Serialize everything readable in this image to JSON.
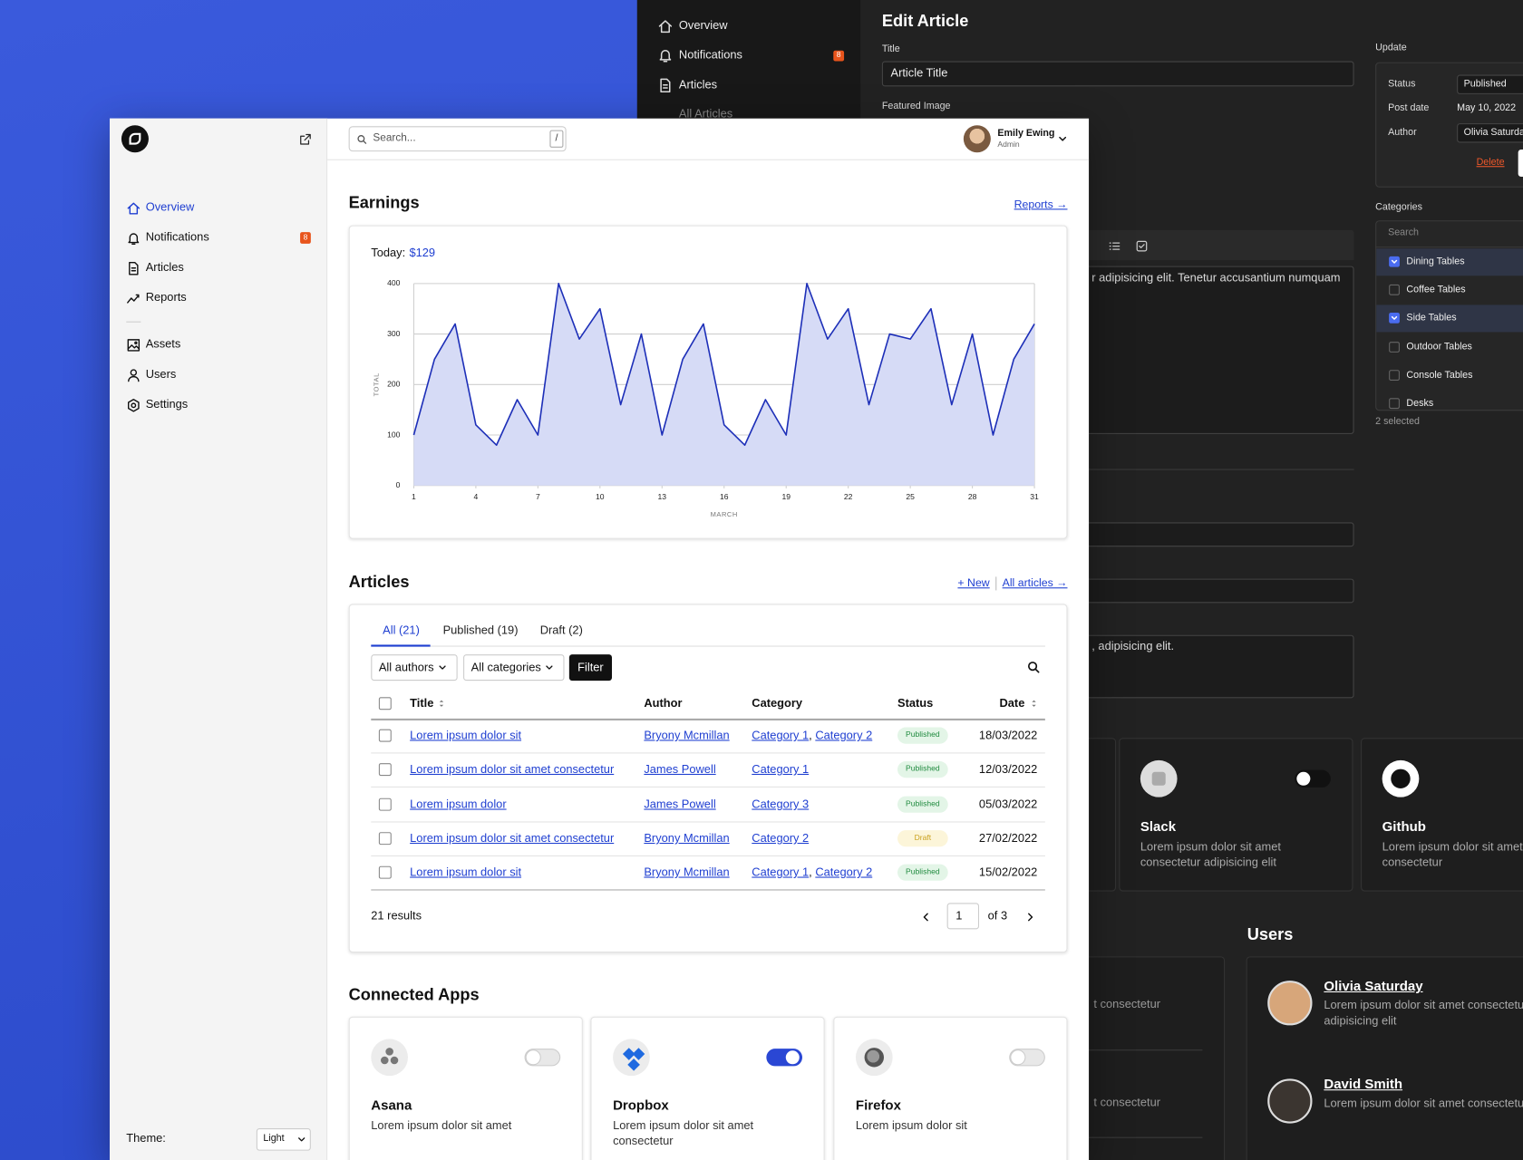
{
  "back_window": {
    "nav": [
      "Overview",
      "Notifications",
      "Articles",
      "All Articles"
    ],
    "notifications_badge": "8",
    "title": "Edit Article",
    "title_label": "Title",
    "title_value": "Article Title",
    "featured_image_label": "Featured Image",
    "editor_text_1": "r adipisicing elit. Tenetur accusantium numquam",
    "editor_text_2": ", adipisicing elit.",
    "update": {
      "heading": "Update",
      "rows": [
        [
          "Status",
          "Published"
        ],
        [
          "Post date",
          "May 10, 2022"
        ],
        [
          "Author",
          "Olivia Saturday"
        ]
      ],
      "delete": "Delete"
    },
    "categories": {
      "heading": "Categories",
      "search": "Search",
      "items": [
        {
          "label": "Dining Tables",
          "checked": true
        },
        {
          "label": "Coffee Tables",
          "checked": false
        },
        {
          "label": "Side Tables",
          "checked": true
        },
        {
          "label": "Outdoor Tables",
          "checked": false
        },
        {
          "label": "Console Tables",
          "checked": false
        },
        {
          "label": "Desks",
          "checked": false
        }
      ],
      "selected": "2 selected"
    },
    "apps": [
      {
        "name": "Slack",
        "desc": "Lorem ipsum dolor sit amet consectetur adipisicing elit",
        "enabled": false
      },
      {
        "name": "Github",
        "desc": "Lorem ipsum dolor sit amet consectetur"
      }
    ],
    "partial_texts": [
      "t consectetur",
      "t consectetur"
    ],
    "users_heading": "Users",
    "users": [
      {
        "name": "Olivia Saturday",
        "desc": "Lorem ipsum dolor sit amet consectetur adipisicing elit"
      },
      {
        "name": "David Smith",
        "desc": "Lorem ipsum dolor sit amet consectetur"
      }
    ]
  },
  "sidebar": {
    "nav": [
      {
        "label": "Overview",
        "active": true
      },
      {
        "label": "Notifications",
        "active": false
      },
      {
        "label": "Articles",
        "active": false
      },
      {
        "label": "Reports",
        "active": false
      },
      {
        "label": "Assets",
        "active": false
      },
      {
        "label": "Users",
        "active": false
      },
      {
        "label": "Settings",
        "active": false
      }
    ],
    "badge": "8",
    "theme_label": "Theme:",
    "theme_value": "Light"
  },
  "topbar": {
    "search_placeholder": "Search...",
    "shortcut": "/",
    "user_name": "Emily Ewing",
    "user_role": "Admin"
  },
  "earnings": {
    "heading": "Earnings",
    "link": "Reports →",
    "today_label": "Today:",
    "today_value": "$129"
  },
  "chart_data": {
    "type": "area",
    "x": [
      1,
      2,
      3,
      4,
      5,
      6,
      7,
      8,
      9,
      10,
      11,
      12,
      13,
      14,
      15,
      16,
      17,
      18,
      19,
      20,
      21,
      22,
      23,
      24,
      25,
      26,
      27,
      28,
      29,
      30,
      31
    ],
    "values": [
      100,
      250,
      320,
      120,
      80,
      170,
      100,
      400,
      290,
      350,
      160,
      300,
      100,
      250,
      320,
      120,
      80,
      170,
      100,
      400,
      290,
      350,
      160,
      300,
      290,
      350,
      160,
      300,
      100,
      250,
      320
    ],
    "color": "#1d2fb8",
    "fill": "#d6dbf6",
    "xlim": [
      1,
      31
    ],
    "xticks": [
      1,
      4,
      7,
      10,
      13,
      16,
      19,
      22,
      25,
      28,
      31
    ],
    "ylim": [
      0,
      400
    ],
    "yticks": [
      0,
      100,
      200,
      300,
      400
    ],
    "xlabel": "MARCH",
    "ylabel": "TOTAL",
    "grid": true
  },
  "articles": {
    "heading": "Articles",
    "new_link": "+ New",
    "all_link": "All articles →",
    "tabs": [
      {
        "label": "All (21)",
        "active": true
      },
      {
        "label": "Published (19)",
        "active": false
      },
      {
        "label": "Draft (2)",
        "active": false
      }
    ],
    "filters": [
      "All authors",
      "All categories"
    ],
    "filter_button": "Filter",
    "columns": [
      "Title",
      "Author",
      "Category",
      "Status",
      "Date"
    ],
    "category_separator": ", ",
    "rows": [
      {
        "title": "Lorem ipsum dolor sit",
        "author": "Bryony Mcmillan",
        "categories": [
          "Category 1",
          "Category 2"
        ],
        "status": "Published",
        "status_color": "#1f8a3e",
        "status_bg": "#e3f5e7",
        "date": "18/03/2022"
      },
      {
        "title": "Lorem ipsum dolor sit amet consectetur",
        "author": "James Powell",
        "categories": [
          "Category 1"
        ],
        "status": "Published",
        "status_color": "#1f8a3e",
        "status_bg": "#e3f5e7",
        "date": "12/03/2022"
      },
      {
        "title": "Lorem ipsum dolor",
        "author": "James Powell",
        "categories": [
          "Category 3"
        ],
        "status": "Published",
        "status_color": "#1f8a3e",
        "status_bg": "#e3f5e7",
        "date": "05/03/2022"
      },
      {
        "title": "Lorem ipsum dolor sit amet consectetur",
        "author": "Bryony Mcmillan",
        "categories": [
          "Category 2"
        ],
        "status": "Draft",
        "status_color": "#c9a01c",
        "status_bg": "#fcf5d9",
        "date": "27/02/2022"
      },
      {
        "title": "Lorem ipsum dolor sit",
        "author": "Bryony Mcmillan",
        "categories": [
          "Category 1",
          "Category 2"
        ],
        "status": "Published",
        "status_color": "#1f8a3e",
        "status_bg": "#e3f5e7",
        "date": "15/02/2022"
      }
    ],
    "results": "21 results",
    "page": "1",
    "of_pages": "of 3"
  },
  "connected_apps": {
    "heading": "Connected Apps",
    "apps": [
      {
        "name": "Asana",
        "desc": "Lorem ipsum dolor sit amet",
        "enabled": false
      },
      {
        "name": "Dropbox",
        "desc": "Lorem ipsum dolor sit amet consectetur",
        "enabled": true
      },
      {
        "name": "Firefox",
        "desc": "Lorem ipsum dolor sit",
        "enabled": false
      }
    ]
  }
}
